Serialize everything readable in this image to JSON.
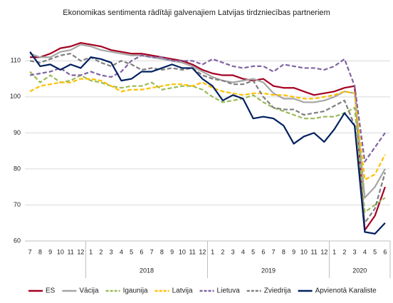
{
  "chart_data": {
    "type": "line",
    "title": "Ekonomikas sentimenta rādītāji galvenajiem Latvijas tirdzniecības partneriem",
    "categories": [
      "7",
      "8",
      "9",
      "10",
      "11",
      "12",
      "1",
      "2",
      "3",
      "4",
      "5",
      "6",
      "7",
      "8",
      "9",
      "10",
      "11",
      "12",
      "1",
      "2",
      "3",
      "4",
      "5",
      "6",
      "7",
      "8",
      "9",
      "10",
      "11",
      "12",
      "1",
      "2",
      "3",
      "4",
      "5",
      "6"
    ],
    "groups": [
      {
        "label": "2018",
        "first": 6,
        "last": 17
      },
      {
        "label": "2019",
        "first": 18,
        "last": 29
      },
      {
        "label": "2020",
        "first": 30,
        "last": 35
      }
    ],
    "ylim": [
      60,
      116
    ],
    "yticks": [
      60,
      70,
      80,
      90,
      100,
      110
    ],
    "grid": true,
    "legend": "bottom",
    "series": [
      {
        "name": "ES",
        "color": "#a50021",
        "dash": false,
        "values": [
          111,
          111,
          112,
          113.5,
          114,
          115,
          114.5,
          114,
          113,
          112.5,
          112,
          112,
          111.5,
          111,
          110.5,
          110,
          109,
          107.5,
          106.5,
          106,
          106,
          105,
          104.5,
          105,
          103,
          102.5,
          102.5,
          101.5,
          100.5,
          101,
          101.5,
          102.5,
          103,
          63,
          67,
          75
        ]
      },
      {
        "name": "Vācija",
        "color": "#a6a6a6",
        "dash": false,
        "values": [
          112,
          111,
          111,
          112.5,
          113,
          114.5,
          114,
          113,
          112.5,
          112,
          111.5,
          111.5,
          111,
          110.5,
          110,
          109.5,
          108.5,
          107,
          105.5,
          104.5,
          104,
          104.5,
          105,
          104,
          101,
          99.5,
          99.5,
          98.5,
          98.5,
          99,
          100,
          101.5,
          101,
          72,
          75,
          80
        ]
      },
      {
        "name": "Igaunija",
        "color": "#9bbb59",
        "dash": true,
        "values": [
          107,
          104,
          106,
          104,
          104.5,
          106,
          104.5,
          104,
          103,
          102.5,
          103,
          103,
          104,
          102,
          102.5,
          103,
          103,
          102,
          100,
          98.5,
          99,
          99.5,
          100.5,
          98.5,
          97,
          96,
          95,
          94,
          94,
          94.5,
          94.5,
          95.5,
          97,
          68,
          70,
          72
        ]
      },
      {
        "name": "Latvija",
        "color": "#ffc000",
        "dash": true,
        "values": [
          101.5,
          103,
          103.5,
          104,
          104,
          105,
          105,
          104.5,
          103,
          101.5,
          102,
          102,
          102.5,
          103,
          103.5,
          103.5,
          103,
          104,
          102.5,
          101.5,
          101,
          100.5,
          101,
          101,
          100.5,
          100.5,
          100,
          99.5,
          99.5,
          100,
          100.5,
          101.5,
          101,
          77,
          78.5,
          84
        ]
      },
      {
        "name": "Lietuva",
        "color": "#8064a2",
        "dash": true,
        "values": [
          106,
          106.5,
          107,
          108,
          106,
          106,
          107,
          106,
          105.5,
          107,
          110,
          111.5,
          111,
          111,
          110,
          110,
          110,
          109,
          110.5,
          109.5,
          108.5,
          108,
          108.5,
          108.5,
          107,
          109,
          108.5,
          108,
          108,
          107.5,
          108.5,
          110.5,
          103,
          82,
          86,
          90
        ]
      },
      {
        "name": "Zviedrija",
        "color": "#7f7f7f",
        "dash": true,
        "values": [
          110,
          109.5,
          110.5,
          111.5,
          112,
          110,
          111,
          109.5,
          108.5,
          110,
          109,
          107.5,
          108,
          107.5,
          108,
          107.5,
          108,
          106,
          105,
          104.5,
          103.5,
          103.5,
          104.5,
          100,
          97,
          96.5,
          96.5,
          95,
          95.5,
          96,
          97.5,
          99,
          92,
          65,
          69,
          79
        ]
      },
      {
        "name": "Apvienotā Karaliste",
        "color": "#002060",
        "dash": false,
        "values": [
          112.5,
          108.5,
          109,
          107.5,
          109,
          108,
          111,
          110.5,
          109.5,
          104.5,
          105,
          107,
          107,
          108,
          109,
          108,
          108,
          105,
          103,
          99,
          100.5,
          99.5,
          94,
          94.5,
          94,
          92,
          87,
          89,
          90,
          87.5,
          91,
          95.5,
          92,
          62.5,
          62,
          65
        ]
      }
    ]
  }
}
